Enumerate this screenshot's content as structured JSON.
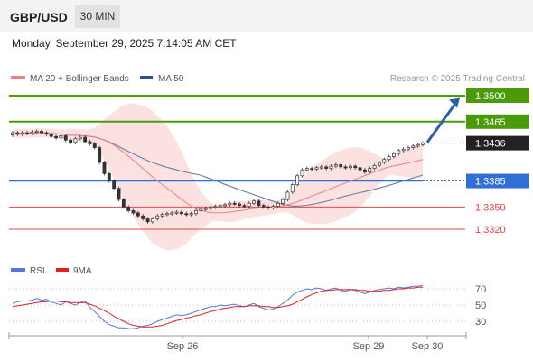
{
  "header": {
    "symbol": "GBP/USD",
    "interval": "30 MIN",
    "datetime": "Monday, September 29, 2025 7:14:05 AM CET"
  },
  "legend": {
    "ma20_label": "MA 20 + Bollinger Bands",
    "ma50_label": "MA 50",
    "credit": "Research © 2025 Trading Central"
  },
  "colors": {
    "ma20": "#f08080",
    "band_fill": "#fcdcdc",
    "ma50": "#6a7fa8",
    "target": "#4a9a0a",
    "pivot": "#2f6fd6",
    "support": "#e04848",
    "last": "#222222",
    "arrow": "#2b5fa8",
    "rsi": "#5577dd",
    "rsi_ma": "#dd2222"
  },
  "chart_data": [
    {
      "type": "candlestick",
      "title": "",
      "series": [
        {
          "name": "MA 20 + Bollinger Bands"
        },
        {
          "name": "MA 50"
        }
      ],
      "ylim": [
        1.331,
        1.3525
      ],
      "levels": [
        {
          "value": 1.35,
          "label": "1.3500",
          "kind": "target"
        },
        {
          "value": 1.3465,
          "label": "1.3465",
          "kind": "target"
        },
        {
          "value": 1.3436,
          "label": "1.3436",
          "kind": "last"
        },
        {
          "value": 1.3385,
          "label": "1.3385",
          "kind": "pivot"
        },
        {
          "value": 1.335,
          "label": "1.3350",
          "kind": "support"
        },
        {
          "value": 1.332,
          "label": "1.3320",
          "kind": "support"
        }
      ],
      "close": [
        1.345,
        1.3448,
        1.345,
        1.3449,
        1.3451,
        1.3452,
        1.345,
        1.3448,
        1.3445,
        1.3443,
        1.3446,
        1.344,
        1.3437,
        1.3442,
        1.3444,
        1.3438,
        1.3435,
        1.343,
        1.341,
        1.3395,
        1.3385,
        1.3375,
        1.336,
        1.335,
        1.3345,
        1.3342,
        1.3338,
        1.3334,
        1.333,
        1.3334,
        1.3338,
        1.334,
        1.3341,
        1.3342,
        1.3343,
        1.3341,
        1.334,
        1.3341,
        1.3345,
        1.3347,
        1.3348,
        1.335,
        1.3351,
        1.3352,
        1.3353,
        1.3355,
        1.3354,
        1.3352,
        1.3351,
        1.3355,
        1.3358,
        1.3352,
        1.335,
        1.3349,
        1.3351,
        1.3355,
        1.336,
        1.337,
        1.338,
        1.3392,
        1.34,
        1.3402,
        1.3401,
        1.3403,
        1.3404,
        1.3402,
        1.3405,
        1.3407,
        1.3404,
        1.3403,
        1.3405,
        1.3403,
        1.34,
        1.3397,
        1.3402,
        1.3406,
        1.341,
        1.3414,
        1.3418,
        1.3422,
        1.3426,
        1.3428,
        1.343,
        1.3432,
        1.3434,
        1.3436
      ]
    },
    {
      "type": "line",
      "title": "",
      "series": [
        {
          "name": "RSI"
        },
        {
          "name": "9MA"
        }
      ],
      "ylim": [
        15,
        85
      ],
      "ticks": [
        70,
        50,
        30
      ],
      "x_ticks": [
        "Sep 26",
        "Sep 29",
        "Sep 30"
      ],
      "rsi": [
        52,
        54,
        55,
        55,
        56,
        58,
        56,
        57,
        54,
        52,
        50,
        54,
        52,
        50,
        53,
        55,
        47,
        42,
        36,
        30,
        26,
        24,
        22,
        22,
        21,
        21,
        22,
        24,
        25,
        27,
        30,
        32,
        34,
        36,
        38,
        37,
        38,
        40,
        42,
        44,
        46,
        48,
        48,
        50,
        49,
        50,
        51,
        49,
        48,
        50,
        52,
        48,
        46,
        44,
        45,
        48,
        52,
        56,
        62,
        66,
        68,
        70,
        69,
        71,
        70,
        68,
        70,
        71,
        68,
        67,
        69,
        68,
        66,
        64,
        66,
        68,
        69,
        70,
        71,
        70,
        72,
        71,
        72,
        73,
        73,
        74
      ],
      "rsi_ma": [
        48,
        49,
        50,
        51,
        52,
        53,
        54,
        54,
        55,
        55,
        54,
        54,
        53,
        53,
        53,
        53,
        51,
        49,
        46,
        43,
        40,
        36,
        33,
        30,
        27,
        25,
        24,
        23,
        23,
        23,
        24,
        25,
        27,
        29,
        31,
        32,
        34,
        35,
        37,
        38,
        40,
        42,
        43,
        45,
        46,
        47,
        48,
        48,
        48,
        49,
        49,
        49,
        48,
        48,
        47,
        47,
        48,
        49,
        51,
        54,
        57,
        60,
        63,
        65,
        67,
        68,
        68,
        69,
        69,
        69,
        69,
        69,
        68,
        68,
        67,
        67,
        67,
        68,
        68,
        69,
        70,
        70,
        71,
        71,
        72,
        72
      ]
    }
  ]
}
